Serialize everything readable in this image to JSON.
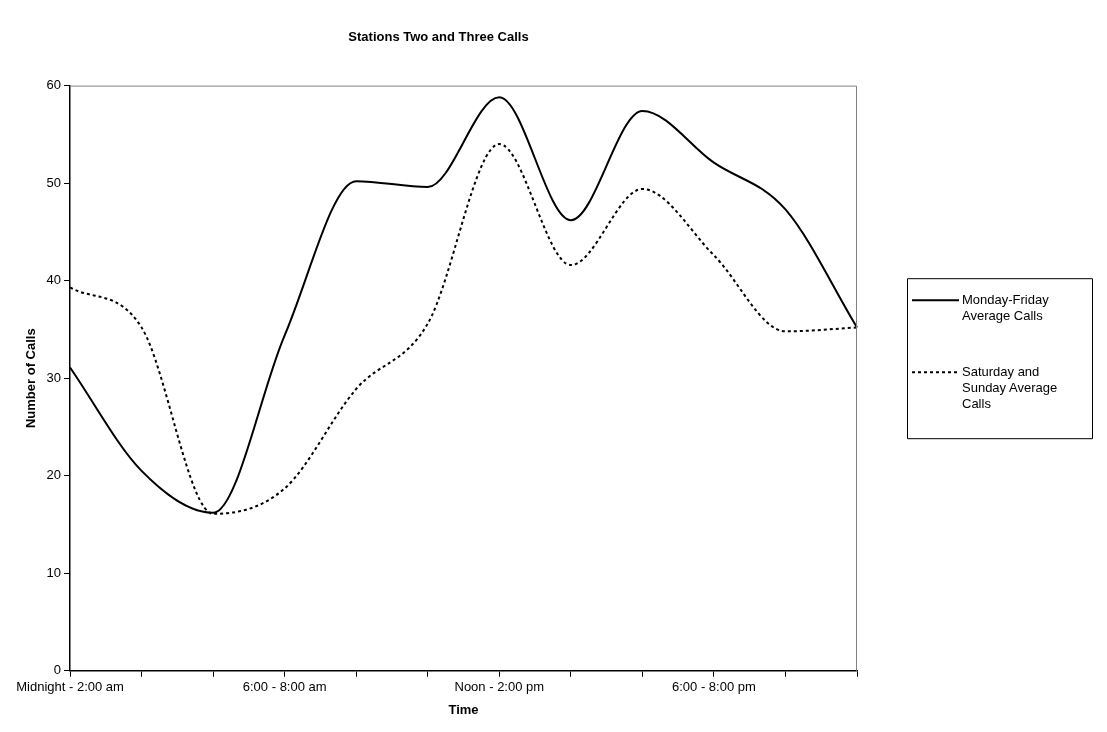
{
  "chart_data": {
    "type": "line",
    "title": "Stations Two and Three Calls",
    "xlabel": "Time",
    "ylabel": "Number of Calls",
    "categories": [
      "Midnight - 2:00 am",
      null,
      null,
      "6:00 - 8:00 am",
      null,
      null,
      "Noon - 2:00 pm",
      null,
      null,
      "6:00 - 8:00 pm",
      null,
      null
    ],
    "series": [
      {
        "name": "Monday-Friday Average Calls",
        "color": "#000000",
        "line_style": "solid",
        "values": [
          31.1,
          20.5,
          16.2,
          34.4,
          50.2,
          49.6,
          58.8,
          46.2,
          57.4,
          52.1,
          47.3,
          35.2
        ]
      },
      {
        "name": "Saturday and Sunday Average Calls",
        "color": "#000000",
        "line_style": "dotted",
        "values": [
          39.3,
          35.2,
          16.1,
          18.7,
          28.9,
          35.6,
          54.0,
          41.6,
          49.4,
          42.6,
          34.8,
          35.2
        ]
      }
    ],
    "ylim": [
      0,
      60
    ],
    "yticks": [
      0,
      10,
      20,
      30,
      40,
      50,
      60
    ],
    "grid": false,
    "legend": "right",
    "marker": "none"
  }
}
